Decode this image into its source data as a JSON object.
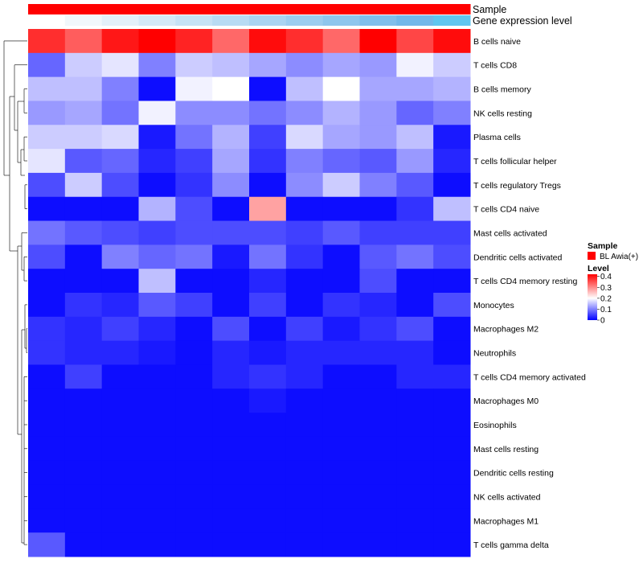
{
  "chart_data": {
    "type": "heatmap",
    "annotation_rows": [
      {
        "label": "Sample",
        "colors": [
          "#ff0000",
          "#ff0000",
          "#ff0000",
          "#ff0000",
          "#ff0000",
          "#ff0000",
          "#ff0000",
          "#ff0000",
          "#ff0000",
          "#ff0000",
          "#ff0000",
          "#ff0000"
        ]
      },
      {
        "label": "Gene expression level",
        "colors": [
          "#ffffff",
          "#f1f7fb",
          "#e3f0f9",
          "#d4e9f7",
          "#c6e2f5",
          "#b8dbf3",
          "#aad4f1",
          "#9ccdef",
          "#8ec6ed",
          "#80bfeb",
          "#72b8e9",
          "#60c6ef"
        ]
      }
    ],
    "rows": [
      "B cells naive",
      "T cells CD8",
      "B cells memory",
      "NK cells resting",
      "Plasma cells",
      "T cells follicular helper",
      "T cells regulatory  Tregs",
      "T cells CD4 naive",
      "Mast cells activated",
      "Dendritic cells activated",
      "T cells CD4 memory resting",
      "Monocytes",
      "Macrophages M2",
      "Neutrophils",
      "T cells CD4 memory activated",
      "Macrophages M0",
      "Eosinophils",
      "Mast cells resting",
      "Dendritic cells resting",
      "NK cells activated",
      "Macrophages M1",
      "T cells gamma delta"
    ],
    "values": [
      [
        0.38,
        0.34,
        0.4,
        0.42,
        0.39,
        0.33,
        0.41,
        0.38,
        0.33,
        0.42,
        0.36,
        0.41
      ],
      [
        0.08,
        0.16,
        0.18,
        0.1,
        0.16,
        0.15,
        0.13,
        0.11,
        0.13,
        0.12,
        0.19,
        0.16
      ],
      [
        0.15,
        0.15,
        0.1,
        0.01,
        0.19,
        0.2,
        0.01,
        0.15,
        0.2,
        0.13,
        0.13,
        0.14
      ],
      [
        0.12,
        0.13,
        0.09,
        0.19,
        0.11,
        0.11,
        0.09,
        0.11,
        0.14,
        0.12,
        0.08,
        0.1
      ],
      [
        0.16,
        0.16,
        0.17,
        0.02,
        0.09,
        0.14,
        0.05,
        0.17,
        0.13,
        0.12,
        0.15,
        0.02
      ],
      [
        0.18,
        0.07,
        0.08,
        0.03,
        0.05,
        0.13,
        0.04,
        0.1,
        0.08,
        0.07,
        0.12,
        0.03
      ],
      [
        0.06,
        0.16,
        0.06,
        0.01,
        0.04,
        0.11,
        0.01,
        0.11,
        0.16,
        0.1,
        0.07,
        0.01
      ],
      [
        0.01,
        0.01,
        0.01,
        0.14,
        0.06,
        0.01,
        0.28,
        0.01,
        0.01,
        0.01,
        0.04,
        0.15
      ],
      [
        0.09,
        0.07,
        0.06,
        0.05,
        0.06,
        0.06,
        0.06,
        0.05,
        0.07,
        0.05,
        0.05,
        0.05
      ],
      [
        0.06,
        0.01,
        0.1,
        0.08,
        0.09,
        0.02,
        0.09,
        0.04,
        0.01,
        0.07,
        0.09,
        0.06
      ],
      [
        0.01,
        0.01,
        0.01,
        0.15,
        0.01,
        0.01,
        0.03,
        0.01,
        0.01,
        0.06,
        0.01,
        0.01
      ],
      [
        0.01,
        0.04,
        0.03,
        0.07,
        0.05,
        0.01,
        0.05,
        0.01,
        0.04,
        0.03,
        0.01,
        0.06
      ],
      [
        0.04,
        0.03,
        0.05,
        0.03,
        0.01,
        0.06,
        0.01,
        0.05,
        0.02,
        0.04,
        0.06,
        0.01
      ],
      [
        0.04,
        0.03,
        0.03,
        0.02,
        0.01,
        0.03,
        0.02,
        0.03,
        0.03,
        0.03,
        0.03,
        0.01
      ],
      [
        0.01,
        0.05,
        0.01,
        0.01,
        0.01,
        0.03,
        0.04,
        0.03,
        0.01,
        0.01,
        0.03,
        0.03
      ],
      [
        0.01,
        0.01,
        0.01,
        0.01,
        0.01,
        0.01,
        0.02,
        0.01,
        0.01,
        0.01,
        0.01,
        0.01
      ],
      [
        0.01,
        0.01,
        0.01,
        0.01,
        0.01,
        0.01,
        0.01,
        0.01,
        0.01,
        0.01,
        0.01,
        0.01
      ],
      [
        0.01,
        0.01,
        0.01,
        0.01,
        0.01,
        0.01,
        0.01,
        0.01,
        0.01,
        0.01,
        0.01,
        0.01
      ],
      [
        0.01,
        0.01,
        0.01,
        0.01,
        0.01,
        0.01,
        0.01,
        0.01,
        0.01,
        0.01,
        0.01,
        0.01
      ],
      [
        0.01,
        0.01,
        0.01,
        0.01,
        0.01,
        0.01,
        0.01,
        0.01,
        0.01,
        0.01,
        0.01,
        0.01
      ],
      [
        0.01,
        0.01,
        0.01,
        0.01,
        0.01,
        0.01,
        0.01,
        0.01,
        0.01,
        0.01,
        0.01,
        0.01
      ],
      [
        0.07,
        0.01,
        0.01,
        0.01,
        0.01,
        0.01,
        0.01,
        0.01,
        0.01,
        0.01,
        0.01,
        0.01
      ]
    ],
    "color_scale": {
      "stops": [
        {
          "value": 0,
          "color": "#0000ff"
        },
        {
          "value": 0.2,
          "color": "#ffffff"
        },
        {
          "value": 0.42,
          "color": "#ff0000"
        }
      ]
    },
    "legend": {
      "position": "right",
      "sample": {
        "title": "Sample",
        "key_color": "#ff0000",
        "entry": "BL Awia(+)"
      },
      "level": {
        "title": "Level",
        "ticks": [
          "0.4",
          "0.3",
          "0.2",
          "0.1",
          "0"
        ],
        "tick_values": [
          0.4,
          0.3,
          0.2,
          0.1,
          0
        ],
        "range": [
          0,
          0.42
        ]
      }
    },
    "dendrogram": {
      "side": "left"
    }
  }
}
